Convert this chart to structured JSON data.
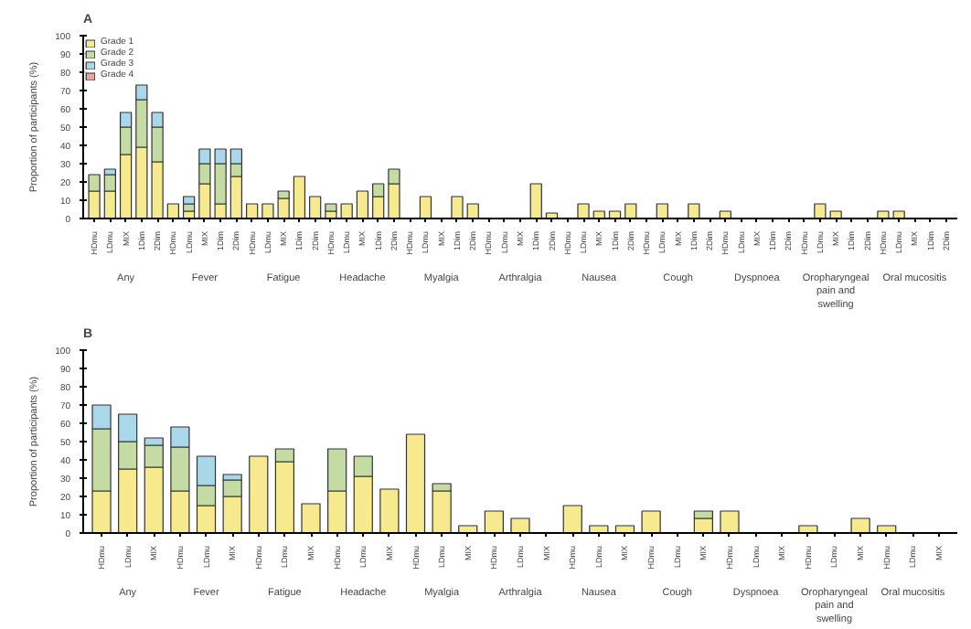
{
  "chart_data": [
    {
      "type": "bar",
      "title": "A",
      "stacked": true,
      "ylabel": "Proportion of participants (%)",
      "ylim": [
        0,
        100
      ],
      "yticks": [
        0,
        10,
        20,
        30,
        40,
        50,
        60,
        70,
        80,
        90,
        100
      ],
      "legend": "top left",
      "grid": false,
      "categories": [
        "HDmu",
        "LDmu",
        "MIX",
        "1Dim",
        "2Dim",
        "HDmu",
        "LDmu",
        "MIX",
        "1Dim",
        "2Dim",
        "HDmu",
        "LDmu",
        "MIX",
        "1Dim",
        "2Dim",
        "HDmu",
        "LDmu",
        "MIX",
        "1Dim",
        "2Dim",
        "HDmu",
        "LDmu",
        "MIX",
        "1Dim",
        "2Dim",
        "HDmu",
        "LDmu",
        "MIX",
        "1Dim",
        "2Dim",
        "HDmu",
        "LDmu",
        "MIX",
        "1Dim",
        "2Dim",
        "HDmu",
        "LDmu",
        "MIX",
        "1Dim",
        "2Dim",
        "HDmu",
        "LDmu",
        "MIX",
        "1Dim",
        "2Dim",
        "HDmu",
        "LDmu",
        "MIX",
        "1Dim",
        "2Dim",
        "HDmu",
        "LDmu",
        "MIX",
        "1Dim",
        "2Dim"
      ],
      "annotations": [
        "Any",
        "Fever",
        "Fatigue",
        "Headache",
        "Myalgia",
        "Arthralgia",
        "Nausea",
        "Cough",
        "Dyspnoea",
        "Oropharyngeal\npain and\nswelling",
        "Oral mucositis"
      ],
      "series": [
        {
          "name": "Grade 1",
          "color": "#f7e98e",
          "values": [
            15,
            15,
            35,
            39,
            31,
            8,
            4,
            19,
            8,
            23,
            8,
            8,
            11,
            23,
            12,
            4,
            8,
            15,
            12,
            19,
            0,
            12,
            0,
            12,
            8,
            0,
            0,
            0,
            19,
            3,
            0,
            8,
            4,
            4,
            8,
            0,
            8,
            0,
            8,
            0,
            4,
            0,
            0,
            0,
            0,
            0,
            8,
            4,
            0,
            0,
            4,
            4,
            0,
            0,
            0
          ]
        },
        {
          "name": "Grade 2",
          "color": "#c5dba4",
          "values": [
            9,
            9,
            15,
            26,
            19,
            0,
            4,
            11,
            22,
            7,
            0,
            0,
            4,
            0,
            0,
            4,
            0,
            0,
            7,
            8,
            0,
            0,
            0,
            0,
            0,
            0,
            0,
            0,
            0,
            0,
            0,
            0,
            0,
            0,
            0,
            0,
            0,
            0,
            0,
            0,
            0,
            0,
            0,
            0,
            0,
            0,
            0,
            0,
            0,
            0,
            0,
            0,
            0,
            0,
            0
          ]
        },
        {
          "name": "Grade 3",
          "color": "#a8d8ea",
          "values": [
            0,
            3,
            8,
            8,
            8,
            0,
            4,
            8,
            8,
            8,
            0,
            0,
            0,
            0,
            0,
            0,
            0,
            0,
            0,
            0,
            0,
            0,
            0,
            0,
            0,
            0,
            0,
            0,
            0,
            0,
            0,
            0,
            0,
            0,
            0,
            0,
            0,
            0,
            0,
            0,
            0,
            0,
            0,
            0,
            0,
            0,
            0,
            0,
            0,
            0,
            0,
            0,
            0,
            0,
            0
          ]
        },
        {
          "name": "Grade 4",
          "color": "#e8a3a3",
          "values": [
            0,
            0,
            0,
            0,
            0,
            0,
            0,
            0,
            0,
            0,
            0,
            0,
            0,
            0,
            0,
            0,
            0,
            0,
            0,
            0,
            0,
            0,
            0,
            0,
            0,
            0,
            0,
            0,
            0,
            0,
            0,
            0,
            0,
            0,
            0,
            0,
            0,
            0,
            0,
            0,
            0,
            0,
            0,
            0,
            0,
            0,
            0,
            0,
            0,
            0,
            0,
            0,
            0,
            0,
            0
          ]
        }
      ]
    },
    {
      "type": "bar",
      "title": "B",
      "stacked": true,
      "ylabel": "Proportion of participants (%)",
      "ylim": [
        0,
        100
      ],
      "yticks": [
        0,
        10,
        20,
        30,
        40,
        50,
        60,
        70,
        80,
        90,
        100
      ],
      "grid": false,
      "categories": [
        "HDmu",
        "LDmu",
        "MIX",
        "HDmu",
        "LDmu",
        "MIX",
        "HDmu",
        "LDmu",
        "MIX",
        "HDmu",
        "LDmu",
        "MIX",
        "HDmu",
        "LDmu",
        "MIX",
        "HDmu",
        "LDmu",
        "MIX",
        "HDmu",
        "LDmu",
        "MIX",
        "HDmu",
        "LDmu",
        "MIX",
        "HDmu",
        "LDmu",
        "MIX",
        "HDmu",
        "LDmu",
        "MIX",
        "HDmu",
        "LDmu",
        "MIX"
      ],
      "annotations": [
        "Any",
        "Fever",
        "Fatigue",
        "Headache",
        "Myalgia",
        "Arthralgia",
        "Nausea",
        "Cough",
        "Dyspnoea",
        "Oropharyngeal\npain and\nswelling",
        "Oral mucositis"
      ],
      "series": [
        {
          "color": "#f7e98e",
          "values": [
            23,
            35,
            36,
            23,
            15,
            20,
            42,
            39,
            16,
            23,
            31,
            24,
            54,
            23,
            4,
            12,
            8,
            0,
            15,
            4,
            4,
            12,
            0,
            8,
            12,
            0,
            0,
            4,
            0,
            8,
            4,
            0,
            0
          ]
        },
        {
          "color": "#c5dba4",
          "values": [
            34,
            15,
            12,
            24,
            11,
            9,
            0,
            7,
            0,
            23,
            11,
            0,
            0,
            4,
            0,
            0,
            0,
            0,
            0,
            0,
            0,
            0,
            0,
            4,
            0,
            0,
            0,
            0,
            0,
            0,
            0,
            0,
            0
          ]
        },
        {
          "color": "#a8d8ea",
          "values": [
            13,
            15,
            4,
            11,
            16,
            3,
            0,
            0,
            0,
            0,
            0,
            0,
            0,
            0,
            0,
            0,
            0,
            0,
            0,
            0,
            0,
            0,
            0,
            0,
            0,
            0,
            0,
            0,
            0,
            0,
            0,
            0,
            0
          ]
        }
      ]
    }
  ]
}
